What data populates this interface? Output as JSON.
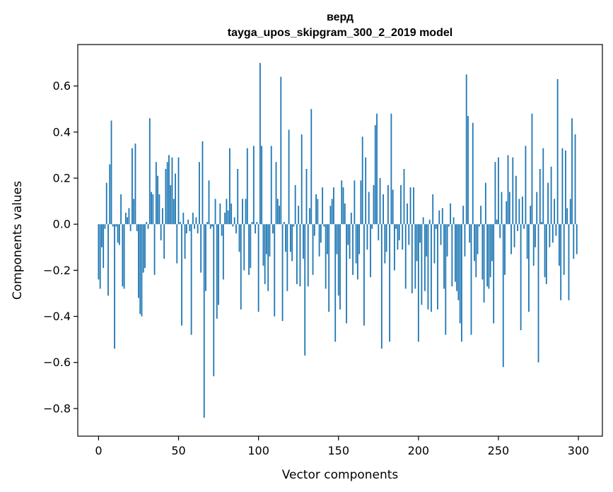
{
  "chart_data": {
    "type": "bar",
    "title": "верд",
    "subtitle": "tayga_upos_skipgram_300_2_2019 model",
    "xlabel": "Vector components",
    "ylabel": "Components values",
    "xlim": [
      -13,
      315
    ],
    "ylim": [
      -0.92,
      0.78
    ],
    "xticks": [
      0,
      50,
      100,
      150,
      200,
      250,
      300
    ],
    "xtick_labels": [
      "0",
      "50",
      "100",
      "150",
      "200",
      "250",
      "300"
    ],
    "yticks": [
      -0.8,
      -0.6,
      -0.4,
      -0.2,
      0.0,
      0.2,
      0.4,
      0.6
    ],
    "ytick_labels": [
      "−0.8",
      "−0.6",
      "−0.4",
      "−0.2",
      "0.0",
      "0.2",
      "0.4",
      "0.6"
    ],
    "grid": false,
    "bar_color": "#1f77b4",
    "values": [
      -0.24,
      -0.28,
      -0.1,
      -0.19,
      -0.02,
      0.18,
      -0.31,
      0.26,
      0.45,
      -0.01,
      -0.54,
      -0.01,
      -0.08,
      -0.09,
      0.13,
      -0.27,
      -0.28,
      0.05,
      0.03,
      0.07,
      -0.03,
      0.33,
      0.11,
      0.35,
      -0.03,
      -0.32,
      -0.39,
      -0.4,
      -0.21,
      -0.19,
      0.01,
      -0.02,
      0.46,
      0.14,
      0.13,
      -0.22,
      0.27,
      0.21,
      0.13,
      -0.07,
      0.07,
      -0.15,
      0.24,
      0.27,
      0.3,
      0.17,
      0.29,
      0.11,
      0.22,
      -0.17,
      0.29,
      0.01,
      -0.44,
      0.05,
      -0.15,
      -0.04,
      0.02,
      -0.03,
      -0.48,
      0.05,
      -0.02,
      0.03,
      -0.04,
      0.27,
      -0.21,
      0.36,
      -0.84,
      -0.29,
      0.01,
      0.19,
      -0.02,
      -0.01,
      -0.66,
      0.11,
      -0.41,
      -0.35,
      0.09,
      -0.05,
      -0.24,
      0.05,
      0.11,
      0.06,
      0.33,
      0.09,
      -0.01,
      0.03,
      -0.04,
      0.24,
      -0.12,
      -0.37,
      0.11,
      -0.2,
      0.11,
      0.33,
      -0.22,
      -0.19,
      0.01,
      0.34,
      -0.04,
      0.01,
      -0.38,
      0.7,
      0.34,
      -0.18,
      -0.26,
      -0.13,
      -0.29,
      -0.14,
      0.34,
      -0.04,
      -0.4,
      0.27,
      0.11,
      0.08,
      0.64,
      -0.42,
      0.01,
      -0.12,
      -0.29,
      0.41,
      -0.12,
      -0.16,
      -0.01,
      0.17,
      -0.26,
      0.08,
      -0.27,
      0.39,
      -0.15,
      -0.57,
      0.24,
      -0.27,
      0.07,
      0.5,
      -0.22,
      -0.05,
      0.13,
      0.11,
      -0.14,
      -0.08,
      0.16,
      -0.01,
      -0.28,
      -0.13,
      -0.38,
      0.08,
      0.11,
      0.16,
      -0.51,
      -0.13,
      -0.31,
      -0.37,
      0.19,
      0.16,
      0.09,
      -0.43,
      -0.09,
      -0.15,
      0.05,
      -0.22,
      0.19,
      -0.17,
      -0.24,
      -0.13,
      0.19,
      0.38,
      -0.44,
      0.29,
      -0.11,
      0.14,
      -0.23,
      -0.02,
      0.17,
      0.43,
      0.48,
      -0.07,
      0.2,
      -0.54,
      0.13,
      -0.17,
      -0.12,
      0.17,
      -0.51,
      0.48,
      0.15,
      -0.2,
      -0.02,
      -0.11,
      -0.07,
      0.17,
      -0.11,
      0.24,
      -0.28,
      0.09,
      -0.09,
      0.16,
      -0.3,
      0.16,
      -0.28,
      -0.16,
      -0.51,
      -0.08,
      -0.35,
      0.03,
      -0.29,
      -0.14,
      -0.37,
      0.02,
      -0.38,
      0.13,
      -0.17,
      -0.02,
      -0.37,
      0.06,
      -0.09,
      0.07,
      -0.28,
      -0.48,
      -0.14,
      -0.01,
      0.09,
      -0.27,
      0.03,
      -0.25,
      -0.29,
      -0.33,
      -0.43,
      -0.51,
      0.08,
      -0.14,
      0.65,
      0.47,
      -0.08,
      -0.48,
      0.44,
      -0.16,
      -0.23,
      -0.13,
      -0.01,
      0.08,
      -0.24,
      -0.34,
      0.18,
      -0.27,
      -0.28,
      -0.23,
      -0.16,
      -0.43,
      0.27,
      0.02,
      0.29,
      -0.06,
      0.14,
      -0.62,
      -0.22,
      0.1,
      0.3,
      0.14,
      -0.13,
      0.29,
      -0.1,
      0.21,
      -0.03,
      0.11,
      -0.46,
      0.12,
      -0.02,
      0.34,
      -0.15,
      -0.38,
      0.08,
      0.48,
      -0.18,
      -0.1,
      0.14,
      -0.6,
      0.24,
      0.01,
      0.33,
      -0.23,
      -0.26,
      0.18,
      -0.1,
      0.25,
      -0.08,
      0.11,
      -0.05,
      0.63,
      -0.18,
      -0.33,
      0.33,
      -0.22,
      0.32,
      0.07,
      -0.33,
      0.11,
      0.46,
      -0.15,
      0.39,
      -0.13
    ]
  }
}
